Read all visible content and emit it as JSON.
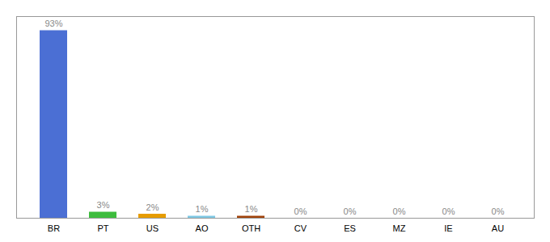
{
  "chart_data": {
    "type": "bar",
    "categories": [
      "BR",
      "PT",
      "US",
      "AO",
      "OTH",
      "CV",
      "ES",
      "MZ",
      "IE",
      "AU"
    ],
    "values": [
      93,
      3,
      2,
      1,
      1,
      0,
      0,
      0,
      0,
      0
    ],
    "value_labels": [
      "93%",
      "3%",
      "2%",
      "1%",
      "1%",
      "0%",
      "0%",
      "0%",
      "0%",
      "0%"
    ],
    "colors": [
      "#4b6fd4",
      "#3dbc3d",
      "#e69c00",
      "#7ec8e3",
      "#a0420a",
      "#4b6fd4",
      "#4b6fd4",
      "#4b6fd4",
      "#4b6fd4",
      "#4b6fd4"
    ],
    "data_labels": true,
    "ylim": [
      0,
      100
    ],
    "yticks": [],
    "tick_labels": "x",
    "grid": false
  }
}
